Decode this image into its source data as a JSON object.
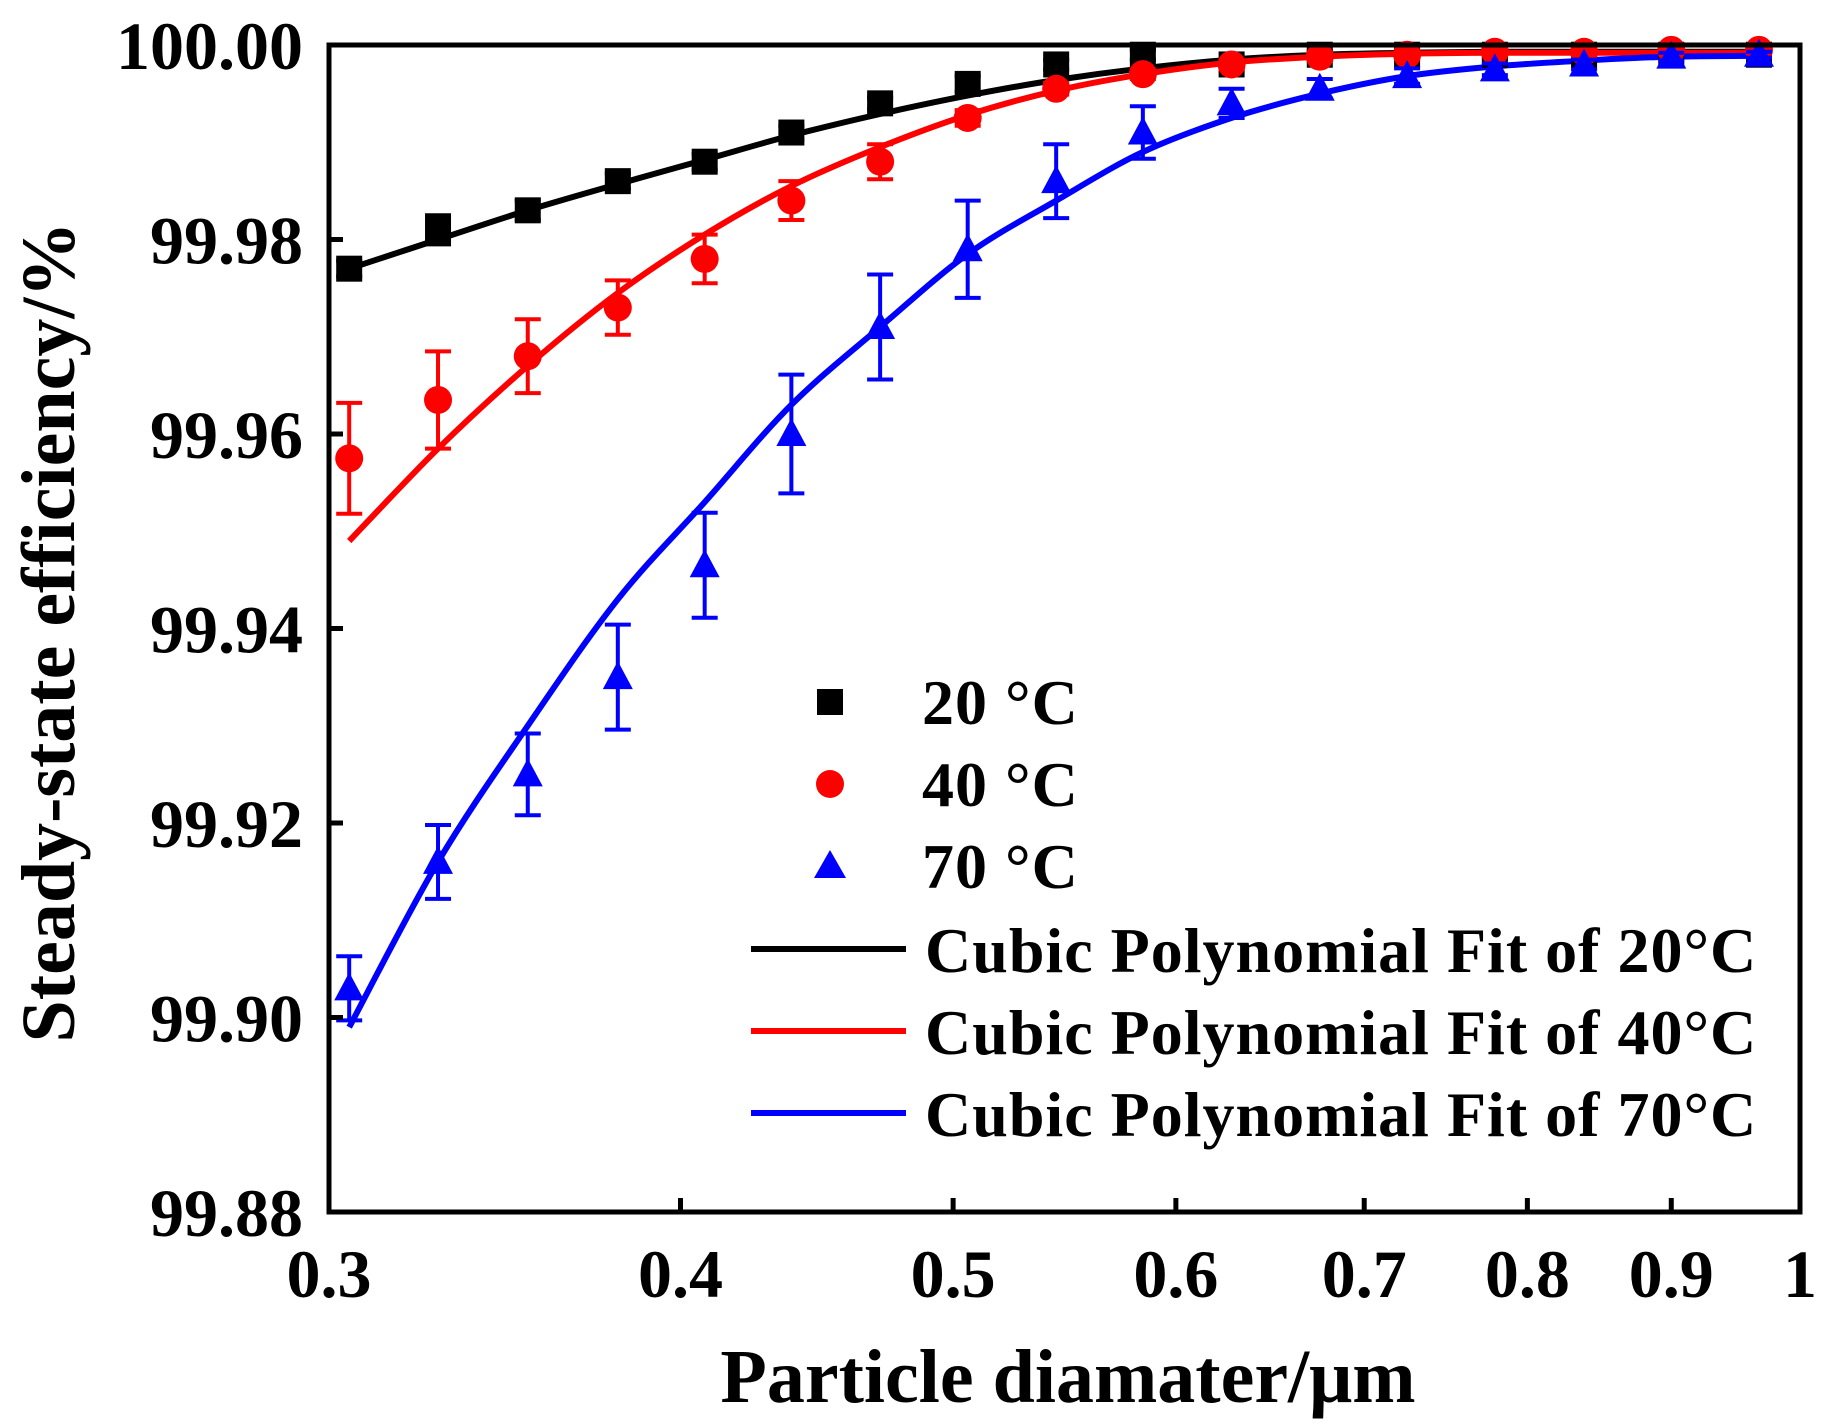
{
  "chart_data": {
    "type": "scatter",
    "title": "",
    "xlabel": "Particle diamater/μm",
    "ylabel": "Steady-state efficiency/%",
    "xscale": "log",
    "xlim": [
      0.3,
      1
    ],
    "ylim": [
      99.88,
      100.0
    ],
    "grid": false,
    "legend_position": "center-right",
    "x_ticks": [
      0.3,
      0.4,
      0.5,
      0.6,
      0.7,
      0.8,
      0.9,
      1
    ],
    "x_tick_labels": [
      "0.3",
      "0.4",
      "0.5",
      "0.6",
      "0.7",
      "0.8",
      "0.9",
      "1"
    ],
    "y_ticks": [
      99.88,
      99.9,
      99.92,
      99.94,
      99.96,
      99.98,
      100.0
    ],
    "y_tick_labels": [
      "99.88",
      "99.90",
      "99.92",
      "99.94",
      "99.96",
      "99.98",
      "100.00"
    ],
    "series": [
      {
        "name": "20 °C",
        "marker": "square",
        "color": "#000000",
        "x": [
          0.305,
          0.328,
          0.353,
          0.38,
          0.408,
          0.438,
          0.471,
          0.506,
          0.544,
          0.584,
          0.628,
          0.675,
          0.725,
          0.779,
          0.838,
          0.9,
          0.967
        ],
        "y": [
          99.977,
          99.981,
          99.983,
          99.986,
          99.988,
          99.991,
          99.994,
          99.996,
          99.998,
          99.999,
          99.998,
          99.999,
          99.999,
          99.999,
          99.999,
          99.999,
          99.999
        ],
        "yerr": [
          0.0008,
          0.0015,
          0.001,
          0.0008,
          0.0008,
          0.0007,
          0.0006,
          0.0008,
          0.0005,
          0.0005,
          0.0006,
          0.0004,
          0.0003,
          0.0003,
          0.0003,
          0.0002,
          0.0002
        ]
      },
      {
        "name": "40 °C",
        "marker": "circle",
        "color": "#ff0000",
        "x": [
          0.305,
          0.328,
          0.353,
          0.38,
          0.408,
          0.438,
          0.471,
          0.506,
          0.544,
          0.584,
          0.628,
          0.675,
          0.725,
          0.779,
          0.838,
          0.9,
          0.967
        ],
        "y": [
          99.9575,
          99.9635,
          99.968,
          99.973,
          99.978,
          99.984,
          99.988,
          99.9925,
          99.9955,
          99.997,
          99.998,
          99.9988,
          99.999,
          99.9993,
          99.9993,
          99.9995,
          99.9995
        ],
        "yerr": [
          0.0057,
          0.005,
          0.0038,
          0.0028,
          0.0025,
          0.002,
          0.0018,
          0.0008,
          0.0006,
          0.0005,
          0.0005,
          0.0004,
          0.0003,
          0.0003,
          0.0002,
          0.0002,
          0.0002
        ]
      },
      {
        "name": "70 °C",
        "marker": "triangle",
        "color": "#0000ff",
        "x": [
          0.305,
          0.328,
          0.353,
          0.38,
          0.408,
          0.438,
          0.471,
          0.506,
          0.544,
          0.584,
          0.628,
          0.675,
          0.725,
          0.779,
          0.838,
          0.9,
          0.967
        ],
        "y": [
          99.903,
          99.916,
          99.925,
          99.935,
          99.9465,
          99.96,
          99.971,
          99.979,
          99.986,
          99.991,
          99.994,
          99.9955,
          99.9968,
          99.9975,
          99.998,
          99.9988,
          99.999
        ],
        "yerr": [
          0.0033,
          0.0038,
          0.0042,
          0.0054,
          0.0054,
          0.0061,
          0.0054,
          0.005,
          0.0038,
          0.0027,
          0.0015,
          0.001,
          0.0008,
          0.0006,
          0.0005,
          0.0004,
          0.0003
        ]
      }
    ],
    "fits": [
      {
        "name": "Cubic Polynomial Fit of 20°C",
        "color": "#000000",
        "x": [
          0.305,
          0.328,
          0.353,
          0.38,
          0.408,
          0.438,
          0.471,
          0.506,
          0.544,
          0.584,
          0.628,
          0.675,
          0.725,
          0.779,
          0.838,
          0.9,
          0.975
        ],
        "y": [
          99.977,
          99.98,
          99.983,
          99.9857,
          99.9882,
          99.9907,
          99.9929,
          99.9948,
          99.9964,
          99.9976,
          99.9985,
          99.999,
          99.9992,
          99.9993,
          99.9993,
          99.9993,
          99.9993
        ]
      },
      {
        "name": "Cubic Polynomial Fit of 40°C",
        "color": "#ff0000",
        "x": [
          0.305,
          0.328,
          0.353,
          0.38,
          0.408,
          0.438,
          0.471,
          0.506,
          0.544,
          0.584,
          0.628,
          0.675,
          0.725,
          0.779,
          0.838,
          0.9,
          0.975
        ],
        "y": [
          99.949,
          99.9585,
          99.967,
          99.9745,
          99.9805,
          99.9855,
          99.9895,
          99.9928,
          99.9953,
          99.997,
          99.9982,
          99.9988,
          99.9991,
          99.9992,
          99.9992,
          99.9992,
          99.9992
        ]
      },
      {
        "name": "Cubic Polynomial Fit of 70°C",
        "color": "#0000ff",
        "x": [
          0.305,
          0.328,
          0.353,
          0.38,
          0.408,
          0.438,
          0.471,
          0.506,
          0.544,
          0.584,
          0.628,
          0.675,
          0.725,
          0.779,
          0.838,
          0.9,
          0.975
        ],
        "y": [
          99.899,
          99.916,
          99.93,
          99.943,
          99.953,
          99.963,
          99.971,
          99.9785,
          99.984,
          99.989,
          99.9925,
          99.995,
          99.9968,
          99.9978,
          99.9984,
          99.9988,
          99.9989
        ]
      }
    ]
  }
}
